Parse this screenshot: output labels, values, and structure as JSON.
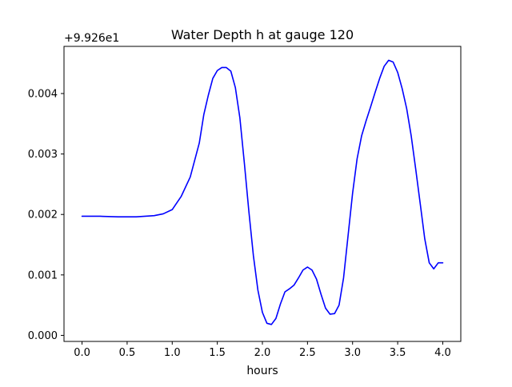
{
  "chart_data": {
    "type": "line",
    "title": "Water Depth h at gauge 120",
    "xlabel": "hours",
    "ylabel": "",
    "offset_text": "+9.926e1",
    "xlim": [
      -0.2,
      4.2
    ],
    "ylim": [
      -0.0001,
      0.00478
    ],
    "x_ticks": [
      0.0,
      0.5,
      1.0,
      1.5,
      2.0,
      2.5,
      3.0,
      3.5,
      4.0
    ],
    "x_tick_labels": [
      "0.0",
      "0.5",
      "1.0",
      "1.5",
      "2.0",
      "2.5",
      "3.0",
      "3.5",
      "4.0"
    ],
    "y_ticks": [
      0.0,
      0.001,
      0.002,
      0.003,
      0.004
    ],
    "y_tick_labels": [
      "0.000",
      "0.001",
      "0.002",
      "0.003",
      "0.004"
    ],
    "grid": false,
    "series": [
      {
        "color": "#0000ff",
        "x": [
          0.0,
          0.2,
          0.4,
          0.6,
          0.8,
          0.9,
          1.0,
          1.1,
          1.2,
          1.3,
          1.35,
          1.4,
          1.45,
          1.5,
          1.55,
          1.6,
          1.65,
          1.7,
          1.75,
          1.8,
          1.85,
          1.9,
          1.95,
          2.0,
          2.05,
          2.1,
          2.15,
          2.2,
          2.25,
          2.3,
          2.35,
          2.4,
          2.45,
          2.5,
          2.55,
          2.6,
          2.65,
          2.7,
          2.75,
          2.8,
          2.85,
          2.9,
          2.95,
          3.0,
          3.05,
          3.1,
          3.15,
          3.2,
          3.25,
          3.3,
          3.35,
          3.4,
          3.45,
          3.5,
          3.55,
          3.6,
          3.65,
          3.7,
          3.75,
          3.8,
          3.85,
          3.9,
          3.95,
          4.0
        ],
        "y": [
          0.00197,
          0.00197,
          0.00196,
          0.00196,
          0.00198,
          0.00201,
          0.00208,
          0.0023,
          0.00262,
          0.00318,
          0.00365,
          0.00397,
          0.00425,
          0.00438,
          0.00443,
          0.00443,
          0.00437,
          0.0041,
          0.0036,
          0.00285,
          0.00205,
          0.00132,
          0.00075,
          0.00038,
          0.0002,
          0.00018,
          0.00028,
          0.00052,
          0.00072,
          0.00077,
          0.00083,
          0.00095,
          0.00108,
          0.00113,
          0.00108,
          0.00093,
          0.00068,
          0.00045,
          0.00035,
          0.00036,
          0.0005,
          0.00095,
          0.00165,
          0.00235,
          0.00292,
          0.0033,
          0.00355,
          0.00378,
          0.00402,
          0.00425,
          0.00445,
          0.00455,
          0.00452,
          0.00435,
          0.00408,
          0.00375,
          0.0033,
          0.00275,
          0.00218,
          0.0016,
          0.0012,
          0.0011,
          0.0012,
          0.0012
        ]
      }
    ]
  }
}
